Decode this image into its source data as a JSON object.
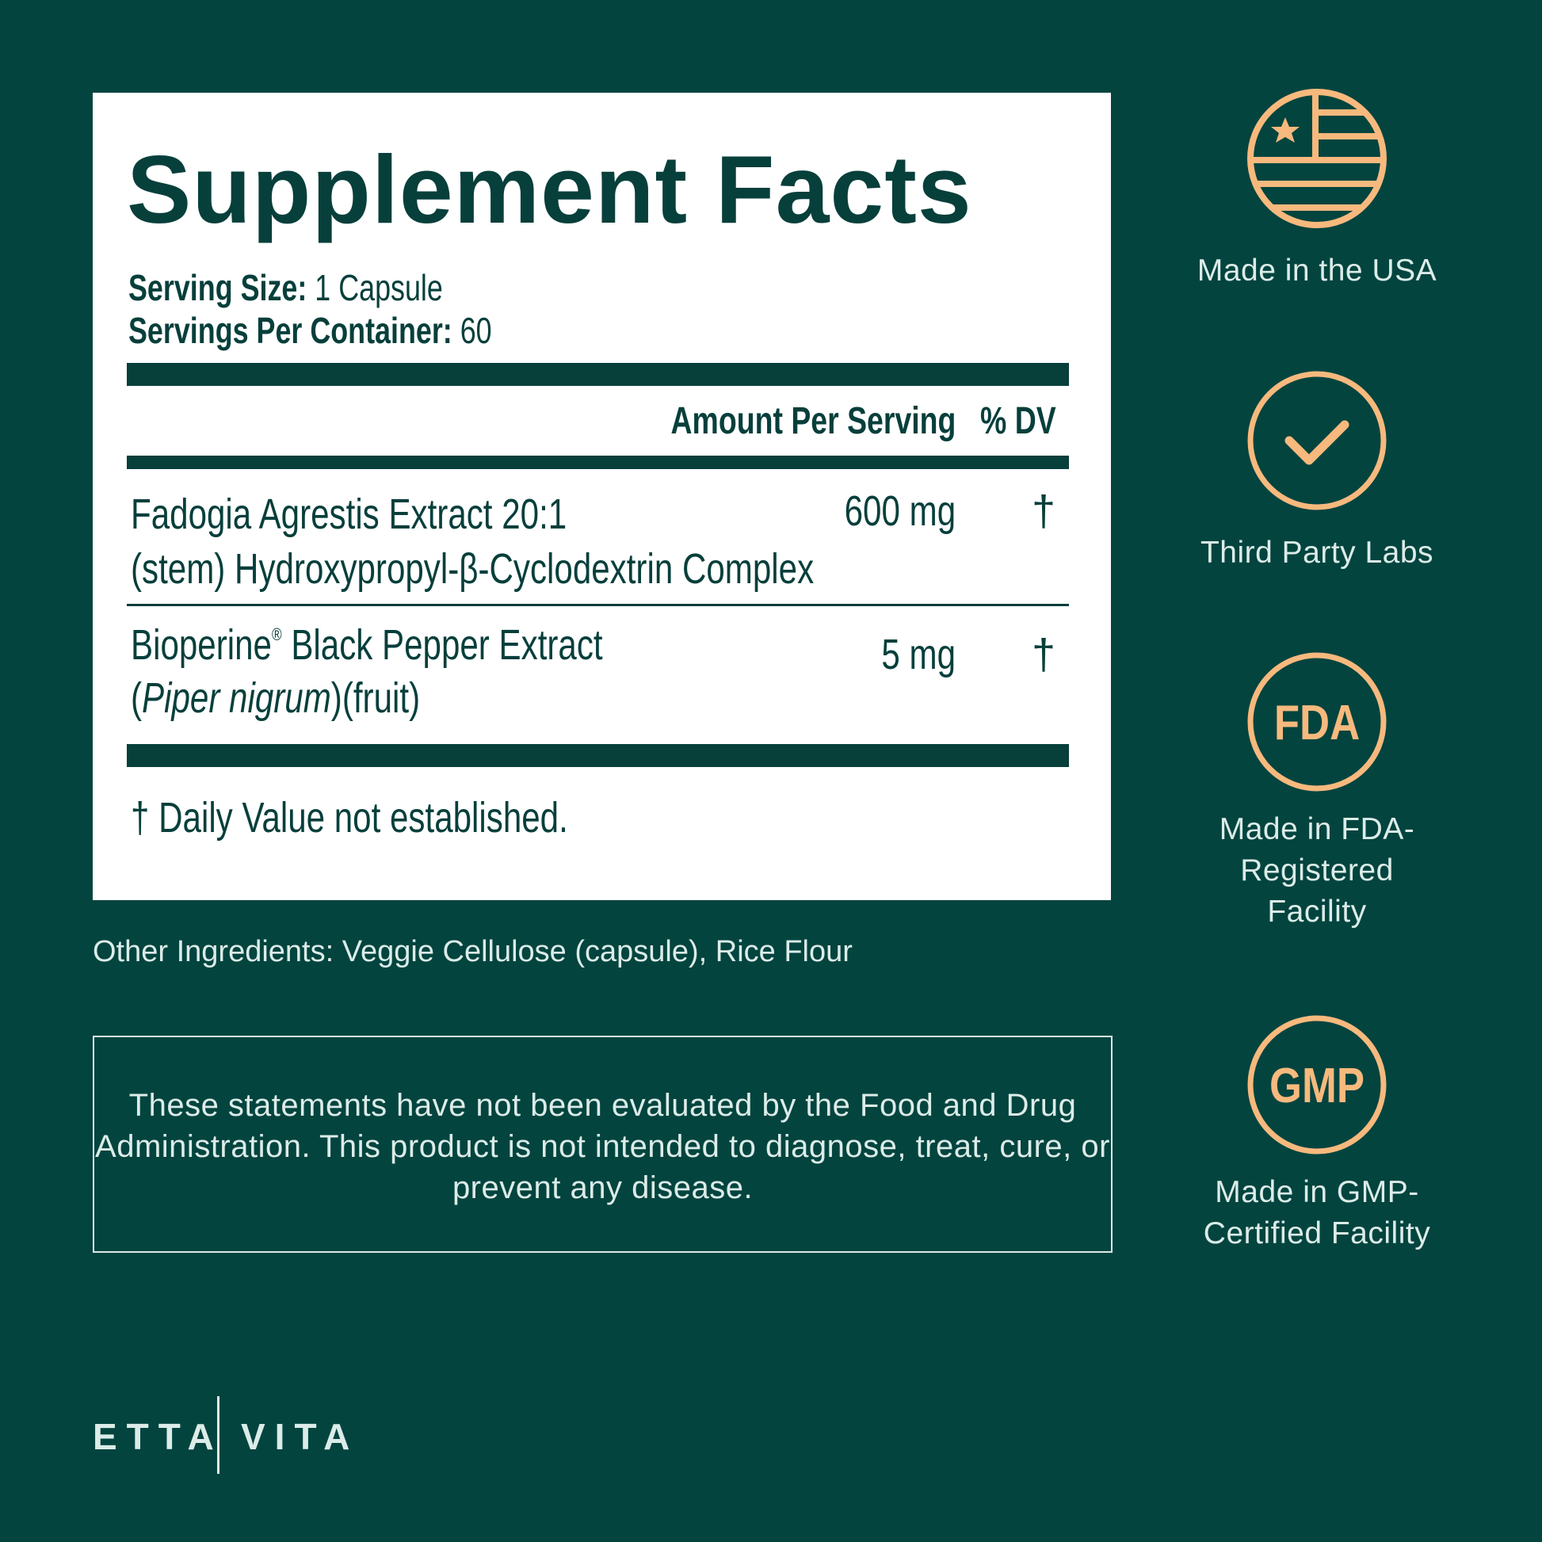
{
  "facts": {
    "title": "Supplement Facts",
    "serving_size_label": "Serving Size:",
    "serving_size_value": "1 Capsule",
    "servings_label": "Servings Per Container:",
    "servings_value": "60",
    "header_amount": "Amount Per Serving",
    "header_dv": "% DV",
    "ingredients": [
      {
        "line1": "Fadogia Agrestis Extract 20:1",
        "line2": "(stem) Hydroxypropyl-β-Cyclodextrin Complex",
        "amount": "600 mg",
        "dv": "†"
      },
      {
        "line1": "Bioperine",
        "mark": "®",
        "line1b": " Black Pepper Extract",
        "line2_italic": "Piper nigrum",
        "line2_open": "(",
        "line2_rest": ")(fruit)",
        "amount": "5 mg",
        "dv": "†"
      }
    ],
    "footnote": "† Daily Value not established."
  },
  "other_ingredients": "Other Ingredients: Veggie Cellulose (capsule), Rice Flour",
  "disclaimer": "These statements have not been evaluated by the Food and Drug Administration. This product is not intended to diagnose, treat, cure, or prevent any disease.",
  "badges": [
    {
      "icon": "usa-flag-icon",
      "label": "Made in the USA"
    },
    {
      "icon": "checkmark-icon",
      "label": "Third Party Labs"
    },
    {
      "icon": "fda-icon",
      "icon_text": "FDA",
      "label": "Made in FDA-Registered Facility"
    },
    {
      "icon": "gmp-icon",
      "icon_text": "GMP",
      "label": "Made in GMP-Certified Facility"
    }
  ],
  "brand": {
    "left": "ETTA",
    "right": "VITA"
  },
  "colors": {
    "background": "#03443f",
    "ink": "#073f3b",
    "accent": "#f7b97d",
    "light_text": "#dcece8"
  }
}
